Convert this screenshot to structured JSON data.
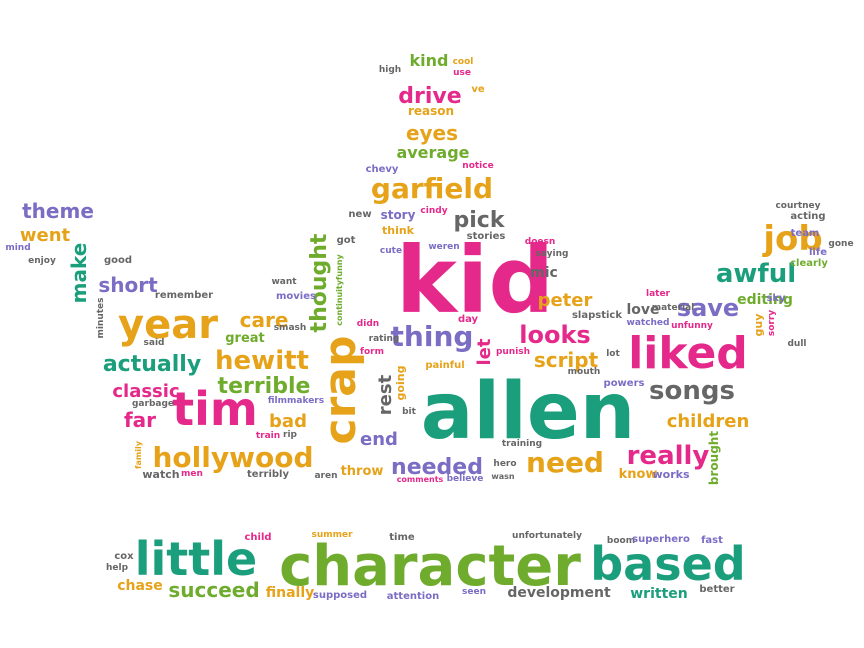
{
  "palette": {
    "pink": "#e5298b",
    "teal": "#1a9e7c",
    "orange": "#e6a219",
    "purple": "#7b6cc4",
    "green": "#6fac2d",
    "gray": "#666666",
    "red": "#d9542b",
    "gold": "#e3aa17"
  },
  "words": [
    {
      "text": "kid",
      "color": "pink"
    },
    {
      "text": "allen",
      "color": "teal"
    },
    {
      "text": "character",
      "color": "green"
    },
    {
      "text": "little",
      "color": "teal"
    },
    {
      "text": "based",
      "color": "teal"
    },
    {
      "text": "crap",
      "color": "orange"
    },
    {
      "text": "liked",
      "color": "pink"
    },
    {
      "text": "tim",
      "color": "pink"
    },
    {
      "text": "year",
      "color": "orange"
    },
    {
      "text": "hollywood",
      "color": "orange"
    },
    {
      "text": "garfield",
      "color": "orange"
    },
    {
      "text": "hewitt",
      "color": "orange"
    },
    {
      "text": "need",
      "color": "orange"
    },
    {
      "text": "thing",
      "color": "purple"
    },
    {
      "text": "really",
      "color": "pink"
    },
    {
      "text": "songs",
      "color": "gray"
    },
    {
      "text": "looks",
      "color": "pink"
    },
    {
      "text": "job",
      "color": "orange"
    },
    {
      "text": "awful",
      "color": "teal"
    },
    {
      "text": "save",
      "color": "purple"
    },
    {
      "text": "actually",
      "color": "teal"
    },
    {
      "text": "terrible",
      "color": "green"
    },
    {
      "text": "needed",
      "color": "purple"
    },
    {
      "text": "thought",
      "color": "green"
    },
    {
      "text": "care",
      "color": "orange"
    },
    {
      "text": "short",
      "color": "purple"
    },
    {
      "text": "make",
      "color": "teal"
    },
    {
      "text": "theme",
      "color": "purple"
    },
    {
      "text": "went",
      "color": "orange"
    },
    {
      "text": "drive",
      "color": "pink"
    },
    {
      "text": "eyes",
      "color": "orange"
    },
    {
      "text": "average",
      "color": "green"
    },
    {
      "text": "pick",
      "color": "gray"
    },
    {
      "text": "script",
      "color": "orange"
    },
    {
      "text": "peter",
      "color": "orange"
    },
    {
      "text": "classic",
      "color": "pink"
    },
    {
      "text": "far",
      "color": "pink"
    },
    {
      "text": "bad",
      "color": "orange"
    },
    {
      "text": "rest",
      "color": "gray"
    },
    {
      "text": "end",
      "color": "purple"
    },
    {
      "text": "let",
      "color": "pink"
    },
    {
      "text": "children",
      "color": "orange"
    },
    {
      "text": "succeed",
      "color": "green"
    },
    {
      "text": "chase",
      "color": "orange"
    },
    {
      "text": "finally",
      "color": "orange"
    },
    {
      "text": "development",
      "color": "gray"
    },
    {
      "text": "written",
      "color": "teal"
    },
    {
      "text": "mic",
      "color": "gray"
    },
    {
      "text": "love",
      "color": "gray"
    },
    {
      "text": "editing",
      "color": "green"
    },
    {
      "text": "great",
      "color": "green"
    },
    {
      "text": "kind",
      "color": "green"
    },
    {
      "text": "throw",
      "color": "orange"
    },
    {
      "text": "know",
      "color": "orange"
    },
    {
      "text": "works",
      "color": "purple"
    },
    {
      "text": "brought",
      "color": "green"
    },
    {
      "text": "reason",
      "color": "orange"
    },
    {
      "text": "cool",
      "color": "orange"
    },
    {
      "text": "use",
      "color": "pink"
    },
    {
      "text": "high",
      "color": "gray"
    },
    {
      "text": "ve",
      "color": "orange"
    },
    {
      "text": "chevy",
      "color": "purple"
    },
    {
      "text": "notice",
      "color": "pink"
    },
    {
      "text": "new",
      "color": "gray"
    },
    {
      "text": "story",
      "color": "purple"
    },
    {
      "text": "cindy",
      "color": "pink"
    },
    {
      "text": "think",
      "color": "orange"
    },
    {
      "text": "weren",
      "color": "purple"
    },
    {
      "text": "stories",
      "color": "gray"
    },
    {
      "text": "doesn",
      "color": "pink"
    },
    {
      "text": "saying",
      "color": "gray"
    },
    {
      "text": "got",
      "color": "gray"
    },
    {
      "text": "cute",
      "color": "purple"
    },
    {
      "text": "want",
      "color": "gray"
    },
    {
      "text": "movies",
      "color": "purple"
    },
    {
      "text": "smash",
      "color": "gray"
    },
    {
      "text": "continuityfunny",
      "color": "green"
    },
    {
      "text": "slapstick",
      "color": "gray"
    },
    {
      "text": "lot",
      "color": "gray"
    },
    {
      "text": "later",
      "color": "pink"
    },
    {
      "text": "material",
      "color": "gray"
    },
    {
      "text": "watched",
      "color": "purple"
    },
    {
      "text": "unfunny",
      "color": "pink"
    },
    {
      "text": "mind",
      "color": "purple"
    },
    {
      "text": "enjoy",
      "color": "gray"
    },
    {
      "text": "good",
      "color": "gray"
    },
    {
      "text": "remember",
      "color": "gray"
    },
    {
      "text": "minutes",
      "color": "gray"
    },
    {
      "text": "said",
      "color": "gray"
    },
    {
      "text": "courtney",
      "color": "gray"
    },
    {
      "text": "acting",
      "color": "gray"
    },
    {
      "text": "team",
      "color": "purple"
    },
    {
      "text": "life",
      "color": "purple"
    },
    {
      "text": "gone",
      "color": "gray"
    },
    {
      "text": "clearly",
      "color": "green"
    },
    {
      "text": "sky",
      "color": "purple"
    },
    {
      "text": "guy",
      "color": "orange"
    },
    {
      "text": "sorry",
      "color": "pink"
    },
    {
      "text": "dull",
      "color": "gray"
    },
    {
      "text": "didn",
      "color": "pink"
    },
    {
      "text": "rating",
      "color": "gray"
    },
    {
      "text": "form",
      "color": "pink"
    },
    {
      "text": "going",
      "color": "orange"
    },
    {
      "text": "painful",
      "color": "orange"
    },
    {
      "text": "day",
      "color": "pink"
    },
    {
      "text": "punish",
      "color": "pink"
    },
    {
      "text": "mouth",
      "color": "gray"
    },
    {
      "text": "powers",
      "color": "purple"
    },
    {
      "text": "garbage",
      "color": "gray"
    },
    {
      "text": "filmmakers",
      "color": "purple"
    },
    {
      "text": "rip",
      "color": "gray"
    },
    {
      "text": "train",
      "color": "pink"
    },
    {
      "text": "bit",
      "color": "gray"
    },
    {
      "text": "training",
      "color": "gray"
    },
    {
      "text": "hero",
      "color": "gray"
    },
    {
      "text": "wasn",
      "color": "gray"
    },
    {
      "text": "believe",
      "color": "purple"
    },
    {
      "text": "comments",
      "color": "pink"
    },
    {
      "text": "family",
      "color": "orange"
    },
    {
      "text": "watch",
      "color": "gray"
    },
    {
      "text": "men",
      "color": "pink"
    },
    {
      "text": "terribly",
      "color": "gray"
    },
    {
      "text": "aren",
      "color": "gray"
    },
    {
      "text": "child",
      "color": "pink"
    },
    {
      "text": "summer",
      "color": "orange"
    },
    {
      "text": "time",
      "color": "gray"
    },
    {
      "text": "unfortunately",
      "color": "gray"
    },
    {
      "text": "boom",
      "color": "gray"
    },
    {
      "text": "superhero",
      "color": "purple"
    },
    {
      "text": "fast",
      "color": "purple"
    },
    {
      "text": "cox",
      "color": "gray"
    },
    {
      "text": "help",
      "color": "gray"
    },
    {
      "text": "supposed",
      "color": "purple"
    },
    {
      "text": "attention",
      "color": "purple"
    },
    {
      "text": "seen",
      "color": "purple"
    },
    {
      "text": "better",
      "color": "gray"
    }
  ]
}
